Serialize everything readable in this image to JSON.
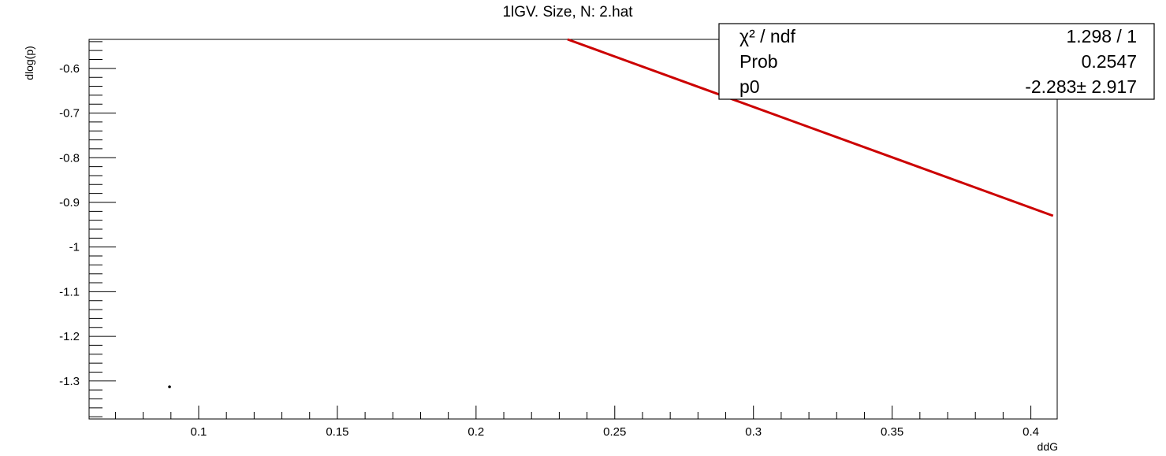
{
  "chart_data": {
    "type": "line",
    "title": "1lGV. Size, N: 2.hat",
    "xlabel": "ddG",
    "ylabel": "dlog(p)",
    "xlim": [
      0.0605,
      0.4095
    ],
    "ylim": [
      -1.385,
      -0.535
    ],
    "xticks": [
      0.1,
      0.15,
      0.2,
      0.25,
      0.3,
      0.35,
      0.4
    ],
    "xtick_labels": [
      "0.1",
      "0.15",
      "0.2",
      "0.25",
      "0.3",
      "0.35",
      "0.4"
    ],
    "yticks": [
      -0.6,
      -0.7,
      -0.8,
      -0.9,
      -1.0,
      -1.1,
      -1.2,
      -1.3
    ],
    "ytick_labels": [
      "-0.6",
      "-0.7",
      "-0.8",
      "-0.9",
      "-1",
      "-1.1",
      "-1.2",
      "-1.3"
    ],
    "grid": false,
    "series": [
      {
        "kind": "points",
        "x": [
          0.0895
        ],
        "y": [
          -1.313
        ],
        "color": "#000000"
      },
      {
        "kind": "fit",
        "x": [
          0.233,
          0.408
        ],
        "y": [
          -0.535,
          -0.93
        ],
        "color": "#cc0000"
      }
    ],
    "stats_box": {
      "placement": "top-right",
      "rows": [
        {
          "label": "χ² / ndf",
          "value": "1.298 / 1"
        },
        {
          "label": "Prob",
          "value": "0.2547"
        },
        {
          "label": "p0",
          "value": "-2.283± 2.917"
        }
      ]
    }
  }
}
